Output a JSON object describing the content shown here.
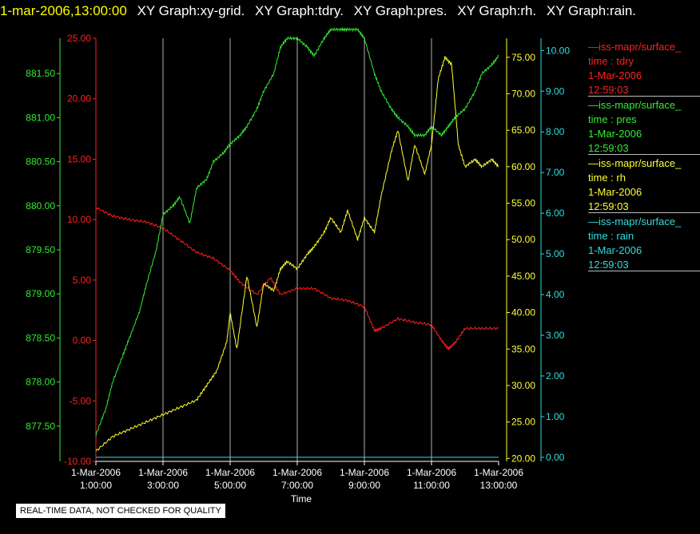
{
  "header": {
    "time": "1-mar-2006,13:00:00",
    "graphs": [
      "XY Graph:xy-grid.",
      "XY Graph:tdry.",
      "XY Graph:pres.",
      "XY Graph:rh.",
      "XY Graph:rain."
    ]
  },
  "legend": [
    {
      "name": "—iss-mapr/surface_",
      "var": "time : tdry",
      "date": "1-Mar-2006",
      "time": "12:59:03",
      "color": "#ff2020"
    },
    {
      "name": "—iss-mapr/surface_",
      "var": "time : pres",
      "date": "1-Mar-2006",
      "time": "12:59:03",
      "color": "#33ee33"
    },
    {
      "name": "—iss-mapr/surface_",
      "var": "time : rh",
      "date": "1-Mar-2006",
      "time": "12:59:03",
      "color": "#ffff33"
    },
    {
      "name": "—iss-mapr/surface_",
      "var": "time : rain",
      "date": "1-Mar-2006",
      "time": "12:59:03",
      "color": "#33dddd"
    }
  ],
  "disclaimer": "REAL-TIME DATA, NOT CHECKED FOR QUALITY",
  "chart_data": {
    "type": "line",
    "xlabel": "Time",
    "x_ticks": [
      {
        "date": "1-Mar-2006",
        "time": "1:00:00"
      },
      {
        "date": "1-Mar-2006",
        "time": "3:00:00"
      },
      {
        "date": "1-Mar-2006",
        "time": "5:00:00"
      },
      {
        "date": "1-Mar-2006",
        "time": "7:00:00"
      },
      {
        "date": "1-Mar-2006",
        "time": "9:00:00"
      },
      {
        "date": "1-Mar-2006",
        "time": "11:00:00"
      },
      {
        "date": "1-Mar-2006",
        "time": "13:00:00"
      }
    ],
    "xlim": [
      "1-Mar-2006 1:00:00",
      "1-Mar-2006 13:00:00"
    ],
    "grid": true,
    "axes": [
      {
        "name": "tdry",
        "color": "#ff2020",
        "ticks": [
          "-10.00",
          "-5.00",
          "0.00",
          "5.00",
          "10.00",
          "15.00",
          "20.00",
          "25.00"
        ],
        "ylim": [
          -10,
          25
        ]
      },
      {
        "name": "pres",
        "color": "#33ee33",
        "ticks": [
          "877.50",
          "878.00",
          "878.50",
          "879.00",
          "879.50",
          "880.00",
          "880.50",
          "881.00",
          "881.50"
        ],
        "ylim": [
          877.1,
          881.9
        ]
      },
      {
        "name": "rh",
        "color": "#ffff33",
        "ticks": [
          "20.00",
          "25.00",
          "30.00",
          "35.00",
          "40.00",
          "45.00",
          "50.00",
          "55.00",
          "60.00",
          "65.00",
          "70.00",
          "75.00"
        ],
        "ylim": [
          19.6,
          77.6
        ]
      },
      {
        "name": "rain",
        "color": "#33dddd",
        "ticks": [
          "0.00",
          "1.00",
          "2.00",
          "3.00",
          "4.00",
          "5.00",
          "6.00",
          "7.00",
          "8.00",
          "9.00",
          "10.00"
        ],
        "ylim": [
          -0.1,
          10.3
        ]
      }
    ],
    "series": [
      {
        "name": "tdry",
        "color": "#ff2020",
        "axis": "tdry",
        "x": [
          1,
          1.5,
          2,
          2.5,
          3,
          3.5,
          4,
          4.5,
          5,
          5.3,
          5.8,
          6.2,
          6.5,
          7,
          7.5,
          8,
          8.5,
          9,
          9.3,
          9.5,
          10,
          10.5,
          11,
          11.3,
          11.5,
          11.7,
          12,
          12.5,
          13
        ],
        "y": [
          11,
          10.3,
          10,
          9.8,
          9.3,
          8.3,
          7.3,
          6.8,
          5.8,
          4.8,
          3.8,
          5.2,
          3.8,
          4.3,
          4.3,
          3.5,
          3.3,
          2.8,
          0.8,
          1,
          1.8,
          1.5,
          1.3,
          0,
          -0.7,
          -0.2,
          1,
          1,
          1
        ]
      },
      {
        "name": "pres",
        "color": "#33ee33",
        "axis": "pres",
        "x": [
          1,
          1.3,
          1.5,
          1.8,
          2,
          2.3,
          2.5,
          2.8,
          3,
          3.3,
          3.5,
          3.8,
          4,
          4.3,
          4.5,
          4.8,
          5,
          5.3,
          5.5,
          5.8,
          6,
          6.3,
          6.5,
          6.7,
          7,
          7.3,
          7.5,
          7.8,
          8,
          8.3,
          8.5,
          8.8,
          9,
          9.3,
          9.5,
          9.8,
          10,
          10.3,
          10.5,
          10.8,
          11,
          11.3,
          11.5,
          11.7,
          12,
          12.3,
          12.5,
          12.8,
          13
        ],
        "y": [
          877.4,
          877.7,
          878,
          878.3,
          878.5,
          878.8,
          879.1,
          879.5,
          879.9,
          880.0,
          880.1,
          879.8,
          880.2,
          880.3,
          880.5,
          880.6,
          880.7,
          880.8,
          880.9,
          881.1,
          881.3,
          881.5,
          881.8,
          881.9,
          881.9,
          881.8,
          881.7,
          881.9,
          882.0,
          882.0,
          882.0,
          882.0,
          881.9,
          881.5,
          881.3,
          881.1,
          881.0,
          880.9,
          880.8,
          880.8,
          880.9,
          880.8,
          880.9,
          881.0,
          881.1,
          881.3,
          881.5,
          881.6,
          881.7
        ]
      },
      {
        "name": "rh",
        "color": "#ffff33",
        "axis": "rh",
        "x": [
          1,
          1.5,
          2,
          2.5,
          3,
          3.5,
          4,
          4.3,
          4.6,
          4.9,
          5,
          5.2,
          5.5,
          5.8,
          6,
          6.3,
          6.5,
          6.7,
          7,
          7.3,
          7.5,
          7.8,
          8,
          8.3,
          8.5,
          8.8,
          9,
          9.3,
          9.5,
          9.8,
          10,
          10.3,
          10.5,
          10.8,
          11,
          11.2,
          11.4,
          11.6,
          11.8,
          12,
          12.3,
          12.5,
          12.8,
          13
        ],
        "y": [
          21,
          23,
          24,
          25,
          26,
          27,
          28,
          30,
          32,
          36,
          40,
          35,
          45,
          38,
          44,
          43,
          46,
          47,
          46,
          48,
          49,
          51,
          53,
          51,
          54,
          50,
          53,
          51,
          56,
          62,
          65,
          58,
          63,
          59,
          63,
          72,
          75,
          74,
          63,
          60,
          61,
          60,
          61,
          60
        ]
      },
      {
        "name": "rain",
        "color": "#33dddd",
        "axis": "rain",
        "x": [
          1,
          13
        ],
        "y": [
          0,
          0
        ]
      }
    ]
  }
}
